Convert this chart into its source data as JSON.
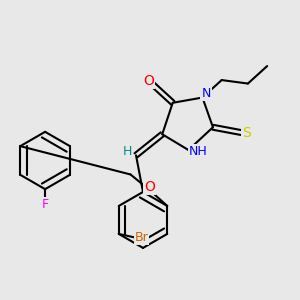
{
  "bg_color": "#e8e8e8",
  "bond_color": "#000000",
  "bond_width": 1.5,
  "atom_colors": {
    "O": "#ff0000",
    "N": "#0000ff",
    "S": "#cccc00",
    "F": "#ff00ff",
    "Br": "#cc6600",
    "H": "#008b8b",
    "C": "#000000"
  },
  "font_size": 9
}
